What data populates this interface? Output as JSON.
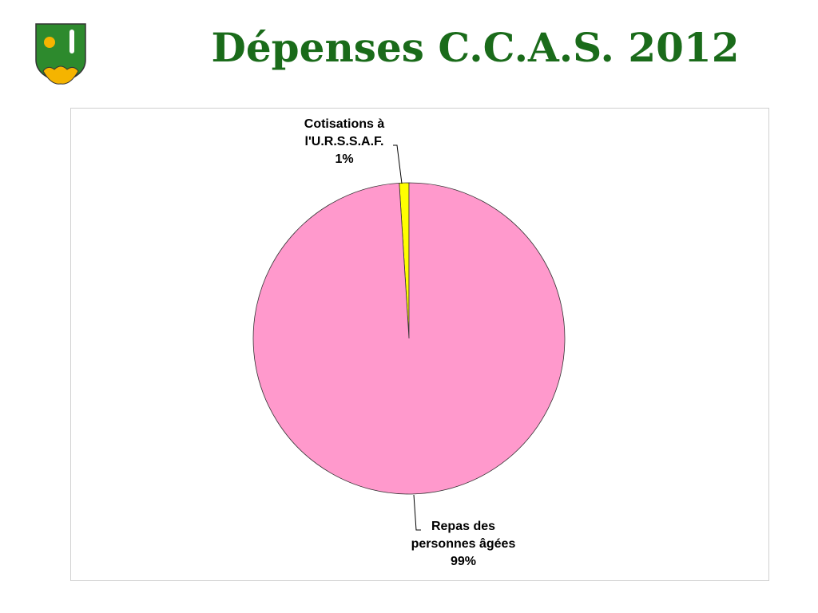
{
  "chart_data": {
    "type": "pie",
    "title": "Dépenses C.C.A.S. 2012",
    "categories": [
      "Repas des personnes âgées",
      "Cotisations à l'U.R.S.S.A.F."
    ],
    "values": [
      99,
      1
    ],
    "value_labels": [
      "99%",
      "1%"
    ],
    "colors": [
      "#ff99cc",
      "#ffff00"
    ]
  }
}
